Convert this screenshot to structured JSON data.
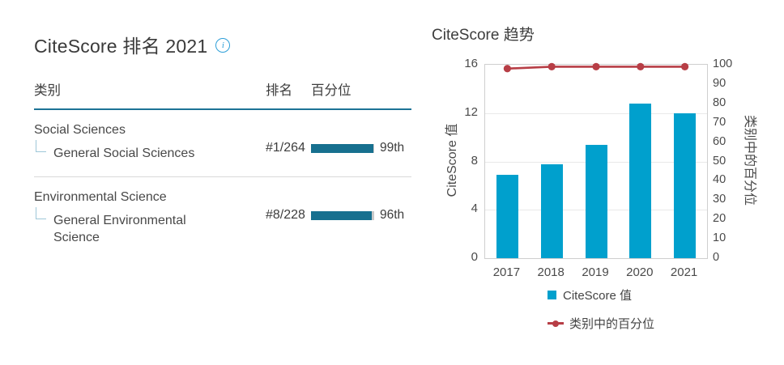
{
  "panel_rankings": {
    "title": "CiteScore 排名 2021",
    "columns": {
      "category": "类别",
      "rank": "排名",
      "percentile": "百分位"
    },
    "rows": [
      {
        "parent": "Social Sciences",
        "child": "General Social Sciences",
        "rank": "#1/264",
        "percentile": 99,
        "percentile_label": "99th"
      },
      {
        "parent": "Environmental Science",
        "child": "General Environmental Science",
        "rank": "#8/228",
        "percentile": 96,
        "percentile_label": "96th"
      }
    ]
  },
  "panel_trends": {
    "title": "CiteScore 趋势"
  },
  "chart_data": {
    "type": "bar",
    "categories": [
      "2017",
      "2018",
      "2019",
      "2020",
      "2021"
    ],
    "series": [
      {
        "name": "CiteScore 值",
        "type": "bar",
        "axis": "left",
        "values": [
          6.9,
          7.8,
          9.4,
          12.8,
          12.0
        ],
        "color": "#00a0cd"
      },
      {
        "name": "类别中的百分位",
        "type": "line",
        "axis": "right",
        "values": [
          98,
          99,
          99,
          99,
          99
        ],
        "color": "#b73e46"
      }
    ],
    "title": "CiteScore 趋势",
    "xlabel": "",
    "left_axis": {
      "label": "CiteScore 值",
      "min": 0,
      "max": 16,
      "ticks": [
        0,
        4,
        8,
        12,
        16
      ]
    },
    "right_axis": {
      "label": "类别中的百分位",
      "min": 0,
      "max": 100,
      "ticks": [
        0,
        10,
        20,
        30,
        40,
        50,
        60,
        70,
        80,
        90,
        100
      ]
    },
    "gridlines": [
      4,
      8,
      12
    ],
    "legend_position": "bottom",
    "legend": [
      {
        "label": "CiteScore 值",
        "marker": "square",
        "color": "#00a0cd"
      },
      {
        "label": "类别中的百分位",
        "marker": "line-dot",
        "color": "#b73e46"
      }
    ]
  },
  "colors": {
    "table_bar_teal": "#17708f",
    "table_bar_track": "#c9c9c9",
    "header_divider_blue": "#1d7396",
    "info_icon_blue": "#2e9fd8",
    "chart_bar_blue": "#00a0cd",
    "line_red": "#b73e46"
  }
}
